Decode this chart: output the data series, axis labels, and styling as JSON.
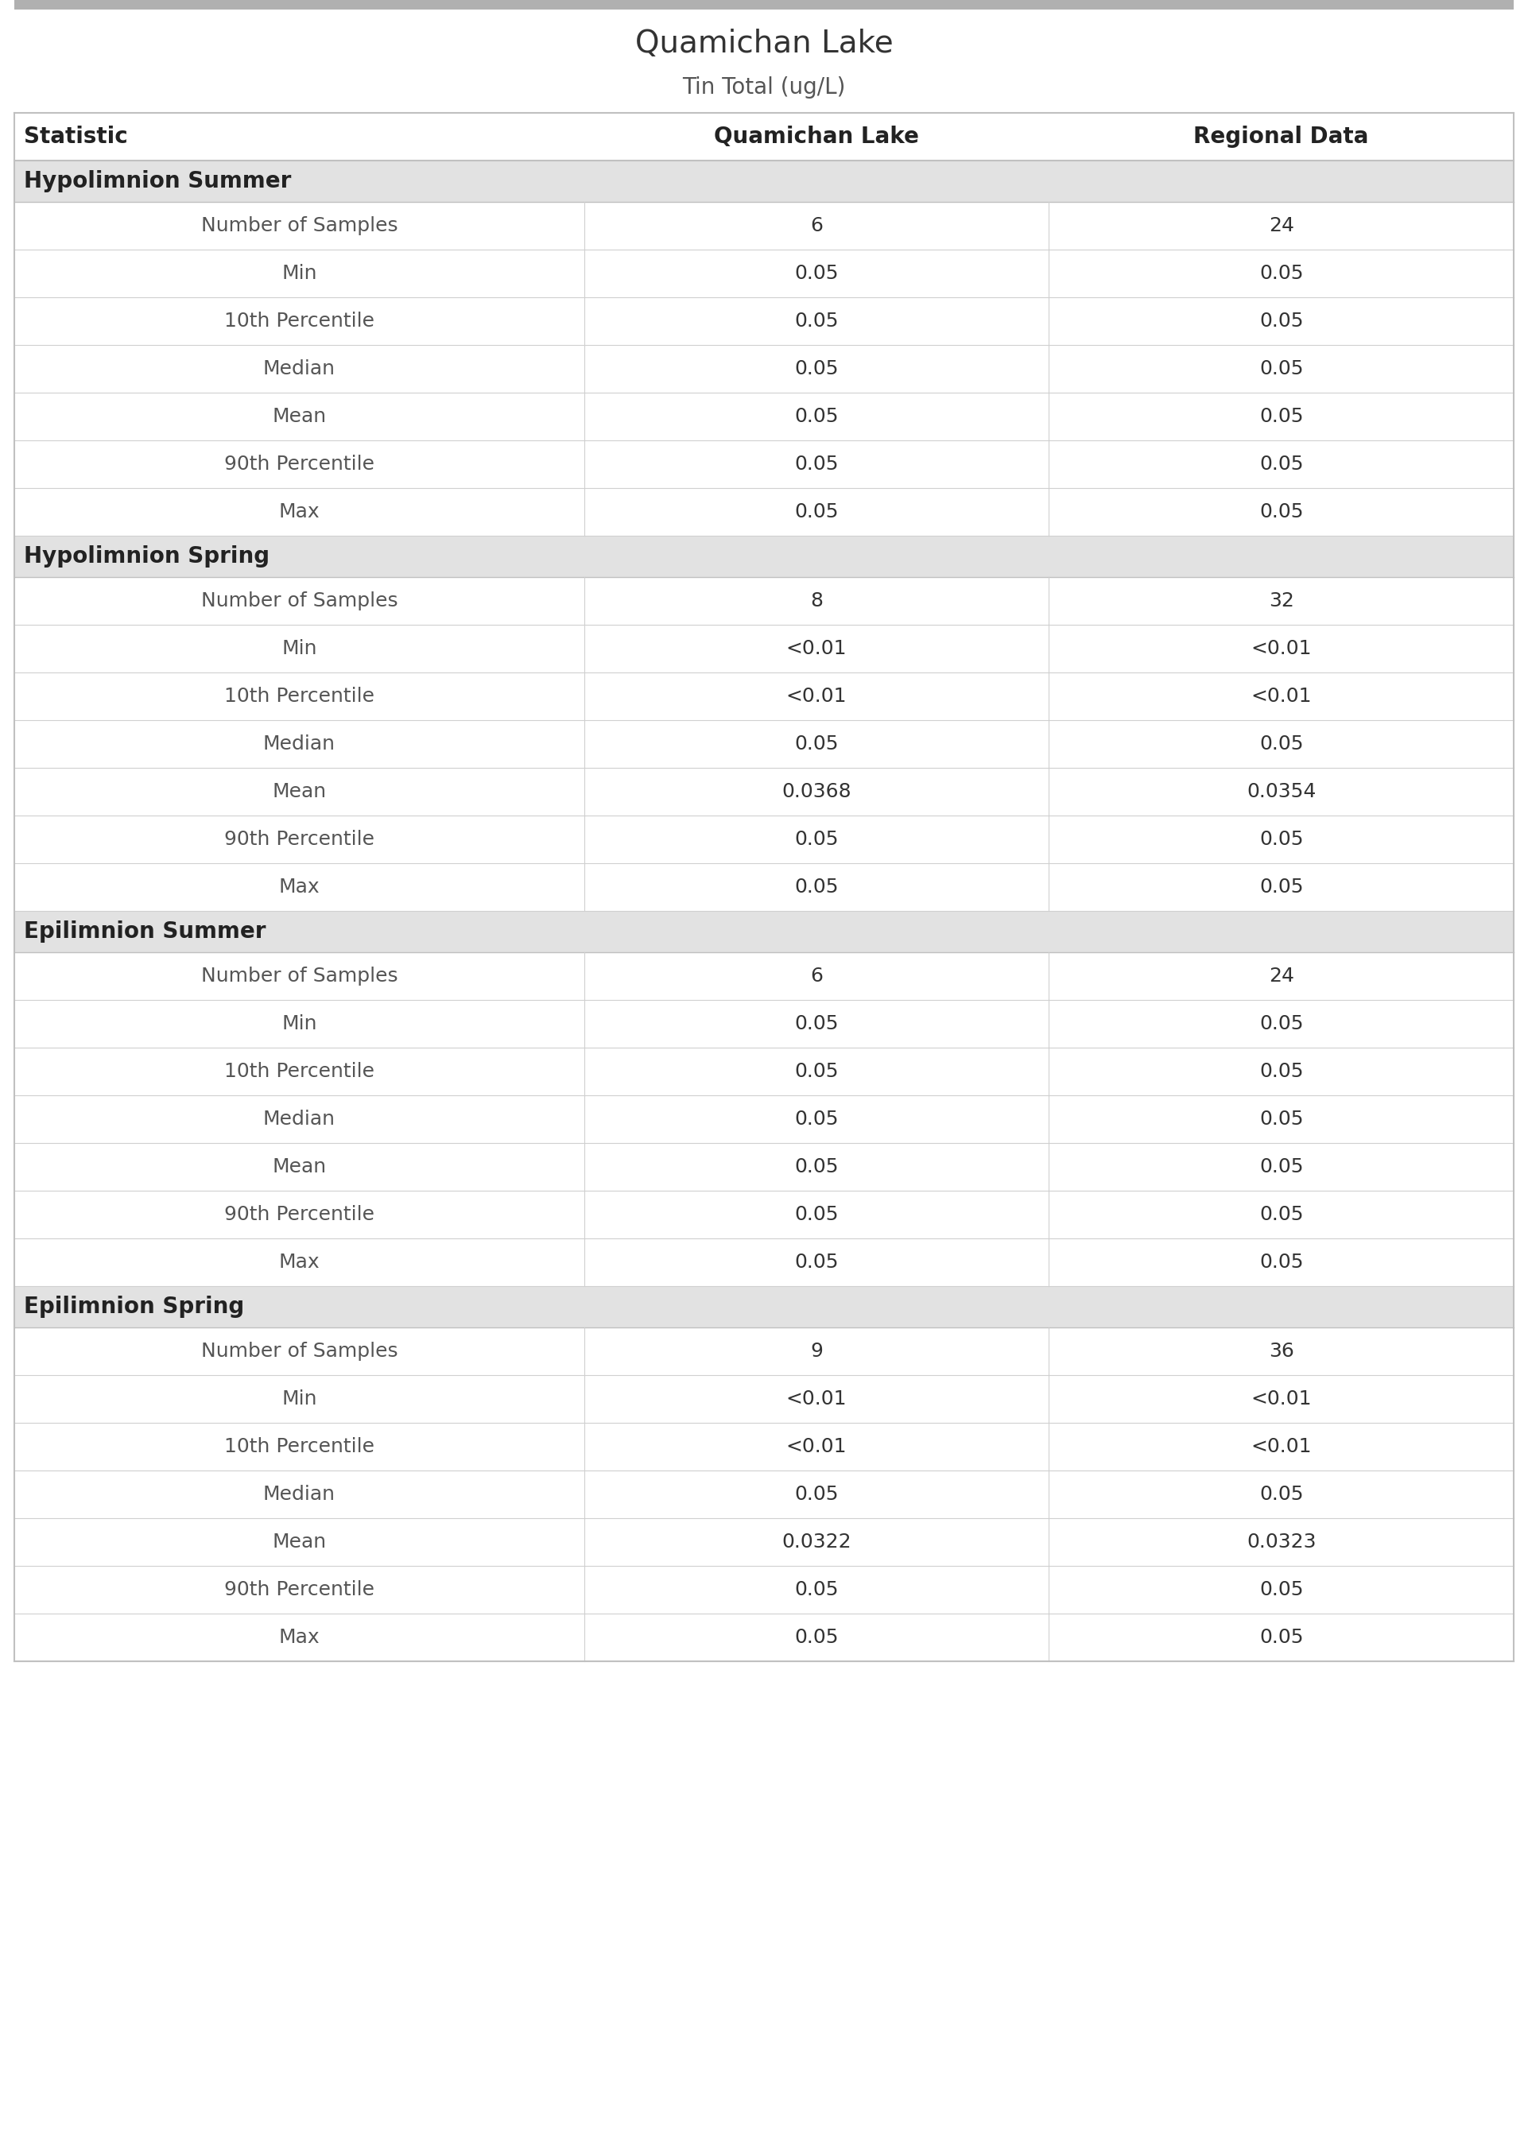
{
  "title": "Quamichan Lake",
  "subtitle": "Tin Total (ug/L)",
  "col_headers": [
    "Statistic",
    "Quamichan Lake",
    "Regional Data"
  ],
  "sections": [
    {
      "section_title": "Hypolimnion Summer",
      "rows": [
        [
          "Number of Samples",
          "6",
          "24"
        ],
        [
          "Min",
          "0.05",
          "0.05"
        ],
        [
          "10th Percentile",
          "0.05",
          "0.05"
        ],
        [
          "Median",
          "0.05",
          "0.05"
        ],
        [
          "Mean",
          "0.05",
          "0.05"
        ],
        [
          "90th Percentile",
          "0.05",
          "0.05"
        ],
        [
          "Max",
          "0.05",
          "0.05"
        ]
      ]
    },
    {
      "section_title": "Hypolimnion Spring",
      "rows": [
        [
          "Number of Samples",
          "8",
          "32"
        ],
        [
          "Min",
          "<0.01",
          "<0.01"
        ],
        [
          "10th Percentile",
          "<0.01",
          "<0.01"
        ],
        [
          "Median",
          "0.05",
          "0.05"
        ],
        [
          "Mean",
          "0.0368",
          "0.0354"
        ],
        [
          "90th Percentile",
          "0.05",
          "0.05"
        ],
        [
          "Max",
          "0.05",
          "0.05"
        ]
      ]
    },
    {
      "section_title": "Epilimnion Summer",
      "rows": [
        [
          "Number of Samples",
          "6",
          "24"
        ],
        [
          "Min",
          "0.05",
          "0.05"
        ],
        [
          "10th Percentile",
          "0.05",
          "0.05"
        ],
        [
          "Median",
          "0.05",
          "0.05"
        ],
        [
          "Mean",
          "0.05",
          "0.05"
        ],
        [
          "90th Percentile",
          "0.05",
          "0.05"
        ],
        [
          "Max",
          "0.05",
          "0.05"
        ]
      ]
    },
    {
      "section_title": "Epilimnion Spring",
      "rows": [
        [
          "Number of Samples",
          "9",
          "36"
        ],
        [
          "Min",
          "<0.01",
          "<0.01"
        ],
        [
          "10th Percentile",
          "<0.01",
          "<0.01"
        ],
        [
          "Median",
          "0.05",
          "0.05"
        ],
        [
          "Mean",
          "0.0322",
          "0.0323"
        ],
        [
          "90th Percentile",
          "0.05",
          "0.05"
        ],
        [
          "Max",
          "0.05",
          "0.05"
        ]
      ]
    }
  ],
  "bg_color": "#ffffff",
  "section_bg_color": "#e2e2e2",
  "top_bar_color": "#b0b0b0",
  "divider_color": "#d0d0d0",
  "title_color": "#333333",
  "subtitle_color": "#555555",
  "section_text_color": "#222222",
  "stat_label_color": "#555555",
  "value_color": "#333333",
  "col_header_color": "#222222",
  "title_fontsize": 28,
  "subtitle_fontsize": 20,
  "col_header_fontsize": 20,
  "section_fontsize": 20,
  "data_fontsize": 18
}
